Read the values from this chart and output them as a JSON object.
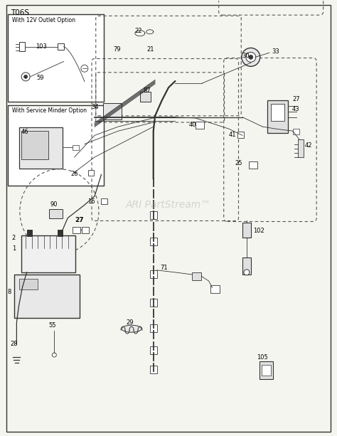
{
  "title": "T06S",
  "bg_color": "#f5f5f0",
  "border_color": "#333333",
  "fig_width": 4.74,
  "fig_height": 6.13,
  "dpi": 100,
  "watermark": "ARI PartStream™",
  "watermark_color": "#bbbbbb",
  "watermark_fontsize": 10,
  "title_fontsize": 7.5,
  "label_fontsize": 6.0,
  "box1_title": "With 12V Outlet Option",
  "box2_title": "With Service Minder Option"
}
